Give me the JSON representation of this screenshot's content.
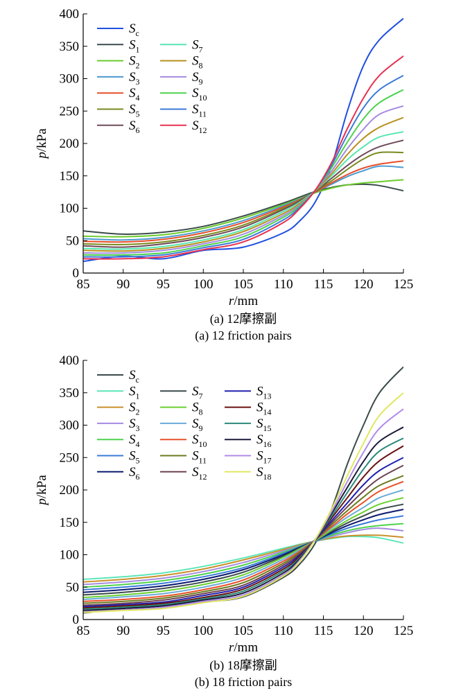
{
  "chart_data": [
    {
      "type": "line",
      "id": "a",
      "caption_cn": "(a) 12摩擦副",
      "caption_en": "(a) 12 friction pairs",
      "xlabel_var": "r",
      "xlabel_unit": "/mm",
      "ylabel_var": "p",
      "ylabel_unit": "/kPa",
      "xlim": [
        85,
        125
      ],
      "ylim": [
        0,
        400
      ],
      "xticks": [
        "85",
        "90",
        "95",
        "100",
        "105",
        "110",
        "115",
        "120",
        "125"
      ],
      "yticks": [
        "0",
        "50",
        "100",
        "150",
        "200",
        "250",
        "300",
        "350",
        "400"
      ],
      "legend_columns": 2,
      "x": [
        85,
        90,
        95,
        100,
        105,
        110,
        112,
        114,
        116,
        118,
        120,
        122,
        125
      ],
      "series": [
        {
          "sym": "S",
          "sub": "c",
          "color": "#1f4fe0",
          "values": [
            18,
            26,
            22,
            35,
            40,
            62,
            80,
            110,
            165,
            250,
            320,
            360,
            393
          ]
        },
        {
          "sym": "S",
          "sub": "1",
          "color": "#3a4a4a",
          "values": [
            65,
            60,
            63,
            72,
            88,
            108,
            117,
            126,
            132,
            136,
            137,
            135,
            127
          ]
        },
        {
          "sym": "S",
          "sub": "2",
          "color": "#6acb2a",
          "values": [
            57,
            56,
            59,
            69,
            85,
            106,
            115,
            124,
            131,
            136,
            139,
            141,
            144
          ]
        },
        {
          "sym": "S",
          "sub": "3",
          "color": "#4a9ad0",
          "values": [
            53,
            51,
            55,
            65,
            81,
            104,
            114,
            125,
            137,
            149,
            158,
            165,
            163
          ]
        },
        {
          "sym": "S",
          "sub": "4",
          "color": "#e84e2a",
          "values": [
            49,
            48,
            52,
            62,
            78,
            102,
            113,
            125,
            139,
            152,
            162,
            168,
            173
          ]
        },
        {
          "sym": "S",
          "sub": "5",
          "color": "#7a8a1e",
          "values": [
            45,
            44,
            48,
            58,
            74,
            100,
            112,
            126,
            142,
            160,
            176,
            186,
            186
          ]
        },
        {
          "sym": "S",
          "sub": "6",
          "color": "#6e4a5a",
          "values": [
            42,
            40,
            45,
            55,
            71,
            98,
            111,
            126,
            146,
            166,
            183,
            195,
            205
          ]
        },
        {
          "sym": "S",
          "sub": "7",
          "color": "#55e6b0",
          "values": [
            38,
            37,
            41,
            51,
            67,
            95,
            109,
            127,
            150,
            175,
            195,
            210,
            218
          ]
        },
        {
          "sym": "S",
          "sub": "8",
          "color": "#b8901e",
          "values": [
            35,
            34,
            38,
            48,
            64,
            92,
            107,
            127,
            153,
            183,
            208,
            225,
            240
          ]
        },
        {
          "sym": "S",
          "sub": "9",
          "color": "#a58ae0",
          "values": [
            31,
            31,
            35,
            45,
            60,
            89,
            105,
            128,
            157,
            192,
            222,
            245,
            258
          ]
        },
        {
          "sym": "S",
          "sub": "10",
          "color": "#4cd24c",
          "values": [
            28,
            28,
            31,
            42,
            56,
            86,
            103,
            128,
            162,
            202,
            238,
            263,
            283
          ]
        },
        {
          "sym": "S",
          "sub": "11",
          "color": "#3a7ad8",
          "values": [
            25,
            25,
            28,
            39,
            52,
            82,
            101,
            128,
            166,
            213,
            255,
            283,
            305
          ]
        },
        {
          "sym": "S",
          "sub": "12",
          "color": "#e83050",
          "values": [
            22,
            22,
            25,
            36,
            48,
            78,
            99,
            128,
            170,
            223,
            270,
            305,
            335
          ]
        }
      ]
    },
    {
      "type": "line",
      "id": "b",
      "caption_cn": "(b) 18摩擦副",
      "caption_en": "(b) 18 friction pairs",
      "xlabel_var": "r",
      "xlabel_unit": "/mm",
      "ylabel_var": "p",
      "ylabel_unit": "/kPa",
      "xlim": [
        85,
        125
      ],
      "ylim": [
        0,
        400
      ],
      "xticks": [
        "85",
        "90",
        "95",
        "100",
        "105",
        "110",
        "115",
        "120",
        "125"
      ],
      "yticks": [
        "0",
        "50",
        "100",
        "150",
        "200",
        "250",
        "300",
        "350",
        "400"
      ],
      "legend_columns": 3,
      "x": [
        85,
        90,
        95,
        100,
        105,
        110,
        112,
        114,
        116,
        118,
        120,
        122,
        125
      ],
      "series": [
        {
          "sym": "S",
          "sub": "c",
          "color": "#3a4a4a",
          "values": [
            10,
            17,
            22,
            27,
            35,
            65,
            85,
            118,
            170,
            240,
            300,
            350,
            390
          ]
        },
        {
          "sym": "S",
          "sub": "1",
          "color": "#5ae6b8",
          "values": [
            62,
            66,
            72,
            82,
            95,
            110,
            116,
            121,
            125,
            128,
            128,
            126,
            118
          ]
        },
        {
          "sym": "S",
          "sub": "2",
          "color": "#c8902a",
          "values": [
            58,
            62,
            68,
            78,
            92,
            108,
            115,
            121,
            126,
            129,
            130,
            130,
            127
          ]
        },
        {
          "sym": "S",
          "sub": "3",
          "color": "#a58ae0",
          "values": [
            54,
            58,
            64,
            74,
            88,
            106,
            114,
            121,
            128,
            134,
            139,
            141,
            137
          ]
        },
        {
          "sym": "S",
          "sub": "4",
          "color": "#4cd24c",
          "values": [
            50,
            54,
            60,
            70,
            84,
            104,
            113,
            121,
            130,
            137,
            142,
            145,
            148
          ]
        },
        {
          "sym": "S",
          "sub": "5",
          "color": "#3a7ad8",
          "values": [
            46,
            50,
            56,
            66,
            80,
            102,
            112,
            121,
            132,
            141,
            148,
            154,
            160
          ]
        },
        {
          "sym": "S",
          "sub": "6",
          "color": "#0a1a70",
          "values": [
            42,
            46,
            52,
            62,
            77,
            100,
            111,
            122,
            134,
            145,
            154,
            162,
            170
          ]
        },
        {
          "sym": "S",
          "sub": "7",
          "color": "#3a4a4a",
          "values": [
            38,
            42,
            48,
            58,
            73,
            98,
            110,
            122,
            136,
            149,
            160,
            170,
            178
          ]
        },
        {
          "sym": "S",
          "sub": "8",
          "color": "#6ad030",
          "values": [
            34,
            38,
            44,
            54,
            69,
            96,
            109,
            122,
            138,
            153,
            166,
            178,
            188
          ]
        },
        {
          "sym": "S",
          "sub": "9",
          "color": "#6aaad8",
          "values": [
            31,
            35,
            40,
            50,
            65,
            93,
            107,
            123,
            141,
            158,
            173,
            188,
            200
          ]
        },
        {
          "sym": "S",
          "sub": "10",
          "color": "#e8502a",
          "values": [
            28,
            31,
            36,
            46,
            61,
            90,
            105,
            123,
            143,
            163,
            181,
            198,
            213
          ]
        },
        {
          "sym": "S",
          "sub": "11",
          "color": "#6a7a1e",
          "values": [
            25,
            28,
            33,
            43,
            57,
            87,
            103,
            123,
            146,
            168,
            189,
            207,
            222
          ]
        },
        {
          "sym": "S",
          "sub": "12",
          "color": "#6e4050",
          "values": [
            22,
            25,
            30,
            40,
            53,
            84,
            101,
            123,
            149,
            174,
            198,
            218,
            238
          ]
        },
        {
          "sym": "S",
          "sub": "13",
          "color": "#2020b0",
          "values": [
            20,
            23,
            27,
            37,
            50,
            81,
            99,
            123,
            152,
            180,
            208,
            230,
            250
          ]
        },
        {
          "sym": "S",
          "sub": "14",
          "color": "#6a1010",
          "values": [
            18,
            21,
            25,
            34,
            47,
            78,
            97,
            124,
            156,
            188,
            220,
            245,
            268
          ]
        },
        {
          "sym": "S",
          "sub": "15",
          "color": "#2a8a7a",
          "values": [
            16,
            19,
            23,
            32,
            44,
            75,
            95,
            124,
            159,
            196,
            232,
            260,
            280
          ]
        },
        {
          "sym": "S",
          "sub": "16",
          "color": "#1a1a3a",
          "values": [
            14,
            17,
            21,
            30,
            41,
            72,
            93,
            124,
            163,
            204,
            244,
            275,
            297
          ]
        },
        {
          "sym": "S",
          "sub": "17",
          "color": "#b08ae8",
          "values": [
            12,
            15,
            19,
            28,
            38,
            69,
            91,
            124,
            166,
            213,
            258,
            295,
            325
          ]
        },
        {
          "sym": "S",
          "sub": "18",
          "color": "#e0e860",
          "values": [
            11,
            14,
            17,
            26,
            36,
            67,
            89,
            124,
            170,
            222,
            272,
            315,
            350
          ]
        }
      ]
    }
  ]
}
